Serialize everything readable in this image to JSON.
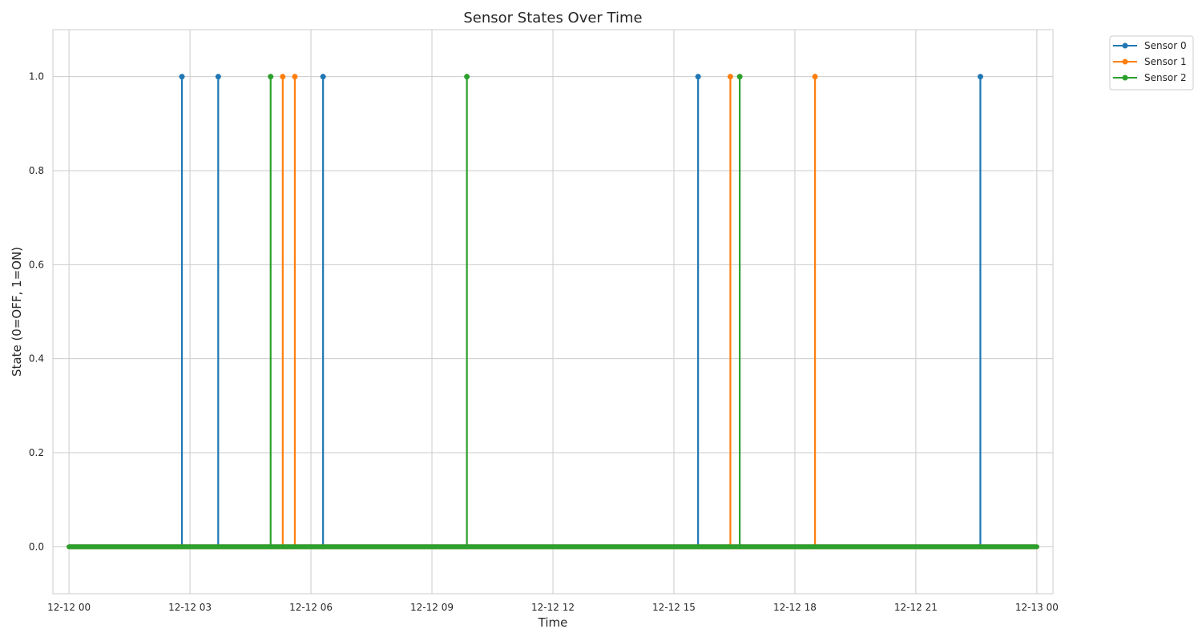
{
  "chart_data": {
    "type": "line",
    "title": "Sensor States Over Time",
    "xlabel": "Time",
    "ylabel": "State (0=OFF, 1=ON)",
    "x_range": [
      "2024-12-11 23:36",
      "2024-12-13 00:24"
    ],
    "ylim": [
      -0.1,
      1.1
    ],
    "x_ticks": [
      "12-12 00",
      "12-12 03",
      "12-12 06",
      "12-12 09",
      "12-12 12",
      "12-12 15",
      "12-12 18",
      "12-12 21",
      "12-13 00"
    ],
    "y_ticks": [
      "0.0",
      "0.2",
      "0.4",
      "0.6",
      "0.8",
      "1.0"
    ],
    "grid": true,
    "legend_placement": "outside-top-right",
    "time_start": "2024-12-12 00:00",
    "time_end": "2024-12-13 00:00",
    "series": [
      {
        "name": "Sensor 0",
        "color": "#1f77b4",
        "on_times": [
          "2024-12-12 02:48",
          "2024-12-12 03:42",
          "2024-12-12 06:18",
          "2024-12-12 15:36",
          "2024-12-12 22:36"
        ]
      },
      {
        "name": "Sensor 1",
        "color": "#ff7f0e",
        "on_times": [
          "2024-12-12 05:18",
          "2024-12-12 05:36",
          "2024-12-12 16:24",
          "2024-12-12 18:30"
        ]
      },
      {
        "name": "Sensor 2",
        "color": "#2ca02c",
        "on_times": [
          "2024-12-12 05:00",
          "2024-12-12 09:52",
          "2024-12-12 16:38"
        ]
      }
    ]
  }
}
